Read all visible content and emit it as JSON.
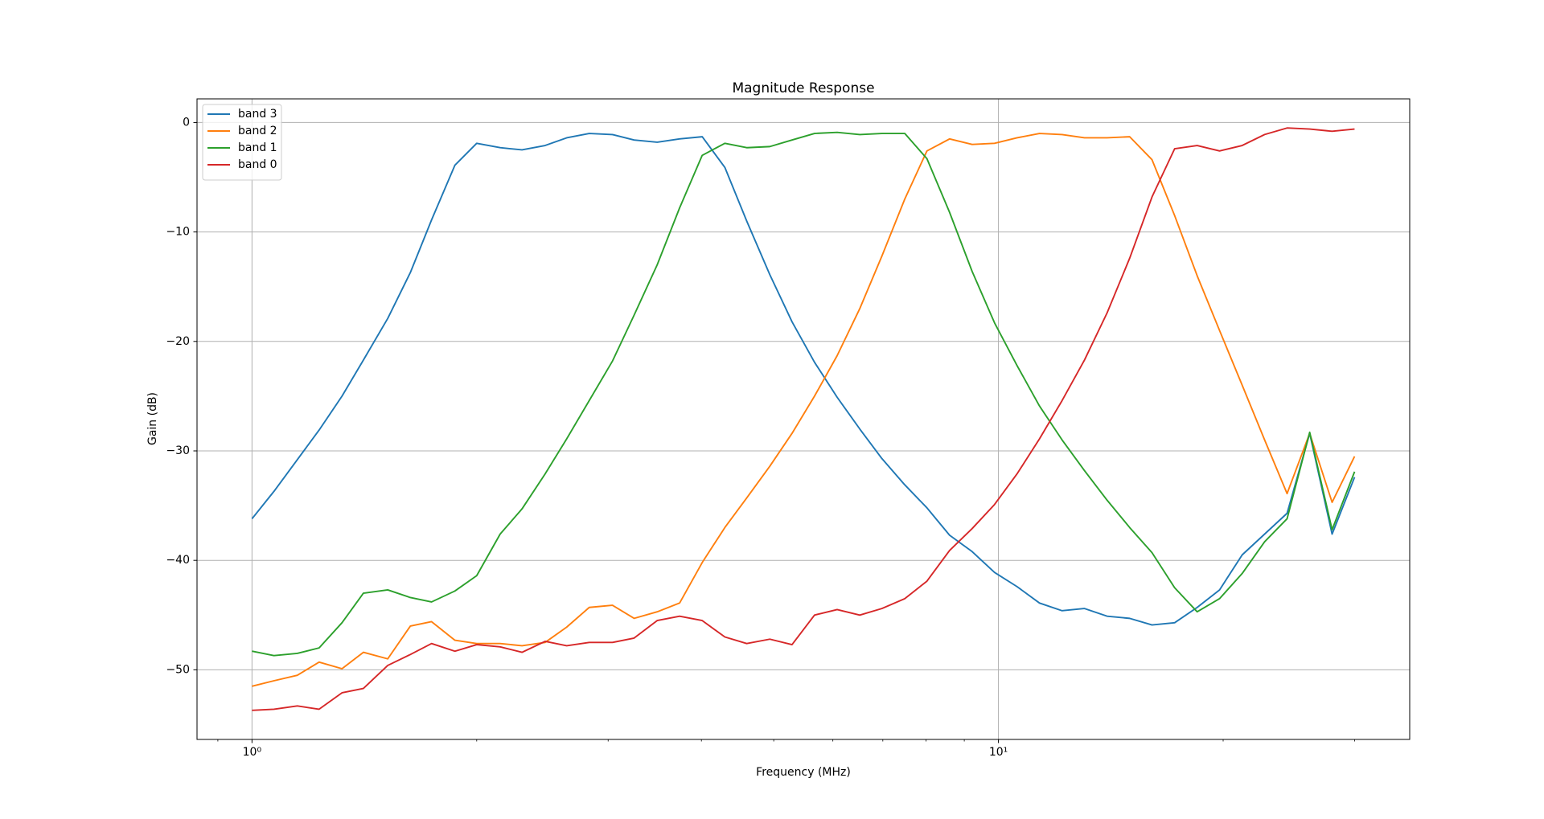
{
  "chart_data": {
    "type": "line",
    "title": "Magnitude Response",
    "xlabel": "Frequency (MHz)",
    "ylabel": "Gain (dB)",
    "xscale": "log",
    "grid": true,
    "legend": "upper left",
    "xlim": [
      0.844,
      35.56
    ],
    "ylim": [
      -56.36,
      2.16
    ],
    "xticks": [
      {
        "value": 1,
        "label": "10⁰"
      },
      {
        "value": 10,
        "label": "10¹"
      }
    ],
    "xminorticks": [
      0.9,
      2,
      3,
      4,
      5,
      6,
      7,
      8,
      9,
      20,
      30
    ],
    "yticks": [
      {
        "value": -50,
        "label": "−50"
      },
      {
        "value": -40,
        "label": "−40"
      },
      {
        "value": -30,
        "label": "−30"
      },
      {
        "value": -20,
        "label": "−20"
      },
      {
        "value": -10,
        "label": "−10"
      },
      0
    ],
    "x": [
      1,
      1.07,
      1.15,
      1.23,
      1.32,
      1.41,
      1.52,
      1.63,
      1.74,
      1.87,
      2.0,
      2.15,
      2.3,
      2.47,
      2.64,
      2.83,
      3.04,
      3.25,
      3.49,
      3.74,
      4.01,
      4.3,
      4.6,
      4.94,
      5.29,
      5.67,
      6.08,
      6.52,
      6.98,
      7.49,
      8.02,
      8.6,
      9.22,
      9.88,
      10.59,
      11.35,
      12.17,
      13.04,
      13.98,
      14.99,
      16.06,
      17.22,
      18.46,
      19.78,
      21.21,
      22.73,
      24.36,
      26.12,
      27.99,
      30.0
    ],
    "series": [
      {
        "name": "band 3",
        "color": "#1f77b4",
        "values": [
          -36.2,
          -33.7,
          -30.8,
          -28.1,
          -25.0,
          -21.7,
          -17.9,
          -13.7,
          -8.9,
          -3.9,
          -1.9,
          -2.3,
          -2.5,
          -2.1,
          -1.4,
          -1.0,
          -1.1,
          -1.6,
          -1.8,
          -1.5,
          -1.3,
          -4.1,
          -9.0,
          -13.9,
          -18.2,
          -21.9,
          -25.1,
          -28.0,
          -30.7,
          -33.1,
          -35.2,
          -37.7,
          -39.2,
          -41.1,
          -42.4,
          -43.9,
          -44.6,
          -44.4,
          -45.1,
          -45.3,
          -45.9,
          -45.7,
          -44.3,
          -42.7,
          -39.5,
          -37.6,
          -35.7,
          -28.4,
          -37.6,
          -32.4
        ]
      },
      {
        "name": "band 2",
        "color": "#ff7f0e",
        "values": [
          -51.5,
          -51.0,
          -50.5,
          -49.3,
          -49.9,
          -48.4,
          -49.0,
          -46.0,
          -45.6,
          -47.3,
          -47.6,
          -47.6,
          -47.8,
          -47.5,
          -46.1,
          -44.3,
          -44.1,
          -45.3,
          -44.7,
          -43.9,
          -40.2,
          -37.0,
          -34.3,
          -31.4,
          -28.4,
          -25.0,
          -21.3,
          -17.0,
          -12.2,
          -7.0,
          -2.6,
          -1.5,
          -2.0,
          -1.9,
          -1.4,
          -1.0,
          -1.1,
          -1.4,
          -1.4,
          -1.3,
          -3.4,
          -8.5,
          -14.0,
          -19.0,
          -24.0,
          -29.0,
          -33.9,
          -28.4,
          -34.7,
          -30.5
        ]
      },
      {
        "name": "band 1",
        "color": "#2ca02c",
        "values": [
          -48.3,
          -48.7,
          -48.5,
          -48.0,
          -45.7,
          -43.0,
          -42.7,
          -43.4,
          -43.8,
          -42.8,
          -41.4,
          -37.6,
          -35.3,
          -32.1,
          -28.9,
          -25.4,
          -21.8,
          -17.6,
          -13.0,
          -7.8,
          -3.0,
          -1.9,
          -2.3,
          -2.2,
          -1.6,
          -1.0,
          -0.9,
          -1.1,
          -1.0,
          -1.0,
          -3.3,
          -8.2,
          -13.6,
          -18.3,
          -22.2,
          -25.9,
          -29.0,
          -31.8,
          -34.5,
          -37.0,
          -39.3,
          -42.5,
          -44.7,
          -43.5,
          -41.2,
          -38.3,
          -36.2,
          -28.3,
          -37.2,
          -31.9
        ]
      },
      {
        "name": "band 0",
        "color": "#d62728",
        "values": [
          -53.7,
          -53.6,
          -53.3,
          -53.6,
          -52.1,
          -51.7,
          -49.6,
          -48.6,
          -47.6,
          -48.3,
          -47.7,
          -47.9,
          -48.4,
          -47.4,
          -47.8,
          -47.5,
          -47.5,
          -47.1,
          -45.5,
          -45.1,
          -45.5,
          -47.0,
          -47.6,
          -47.2,
          -47.7,
          -45.0,
          -44.5,
          -45.0,
          -44.4,
          -43.5,
          -41.9,
          -39.1,
          -37.1,
          -34.9,
          -32.1,
          -28.9,
          -25.4,
          -21.7,
          -17.4,
          -12.4,
          -6.8,
          -2.4,
          -2.1,
          -2.6,
          -2.1,
          -1.1,
          -0.5,
          -0.6,
          -0.8,
          -0.6
        ]
      }
    ]
  }
}
